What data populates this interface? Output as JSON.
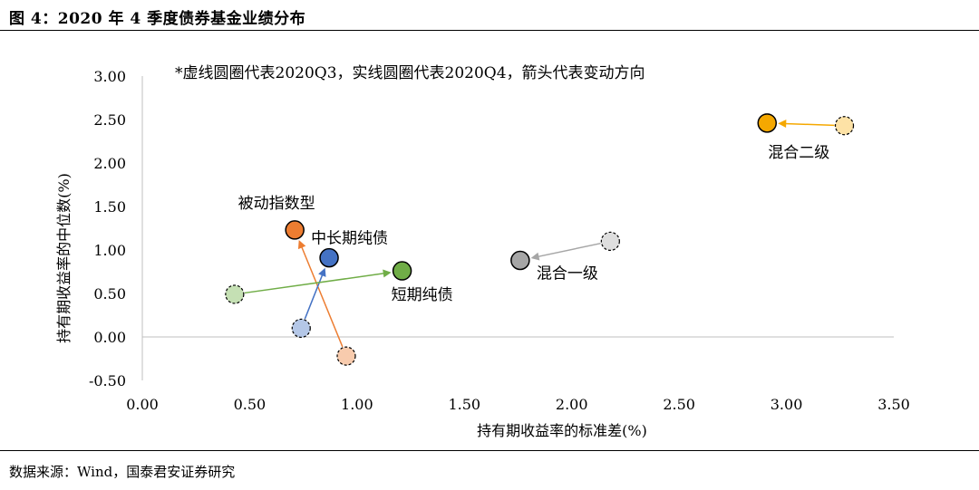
{
  "figure": {
    "title": "图 4：2020 年 4 季度债券基金业绩分布",
    "source": "数据来源：Wind，国泰君安证券研究"
  },
  "chart_data": {
    "type": "scatter",
    "title": "",
    "annotation": "*虚线圆圈代表2020Q3，实线圆圈代表2020Q4，箭头代表变动方向",
    "xlabel": "持有期收益率的标准差(%)",
    "ylabel": "持有期收益率的中位数(%)",
    "xlim": [
      0,
      3.5
    ],
    "ylim": [
      -0.5,
      3.0
    ],
    "xticks": [
      "0.00",
      "0.50",
      "1.00",
      "1.50",
      "2.00",
      "2.50",
      "3.00",
      "3.50"
    ],
    "yticks": [
      "3.00",
      "2.50",
      "2.00",
      "1.50",
      "1.00",
      "0.50",
      "0.00",
      "-0.50"
    ],
    "grid": false,
    "series": [
      {
        "name": "混合二级",
        "q3": [
          3.27,
          2.43
        ],
        "q4": [
          2.91,
          2.46
        ],
        "fill": "#f5a800",
        "q3fill": "#fde2a6",
        "arrow": "#f5a800"
      },
      {
        "name": "混合一级",
        "q3": [
          2.18,
          1.1
        ],
        "q4": [
          1.76,
          0.88
        ],
        "fill": "#a6a6a6",
        "q3fill": "#dedede",
        "arrow": "#a6a6a6"
      },
      {
        "name": "被动指数型",
        "q3": [
          0.95,
          -0.22
        ],
        "q4": [
          0.71,
          1.23
        ],
        "fill": "#ed7d31",
        "q3fill": "#f8cbad",
        "arrow": "#ed7d31"
      },
      {
        "name": "中长期纯债",
        "q3": [
          0.74,
          0.1
        ],
        "q4": [
          0.87,
          0.91
        ],
        "fill": "#4472c4",
        "q3fill": "#b4c7e7",
        "arrow": "#4472c4"
      },
      {
        "name": "短期纯债",
        "q3": [
          0.43,
          0.49
        ],
        "q4": [
          1.21,
          0.76
        ],
        "fill": "#70ad47",
        "q3fill": "#c5e0b4",
        "arrow": "#70ad47"
      }
    ]
  }
}
